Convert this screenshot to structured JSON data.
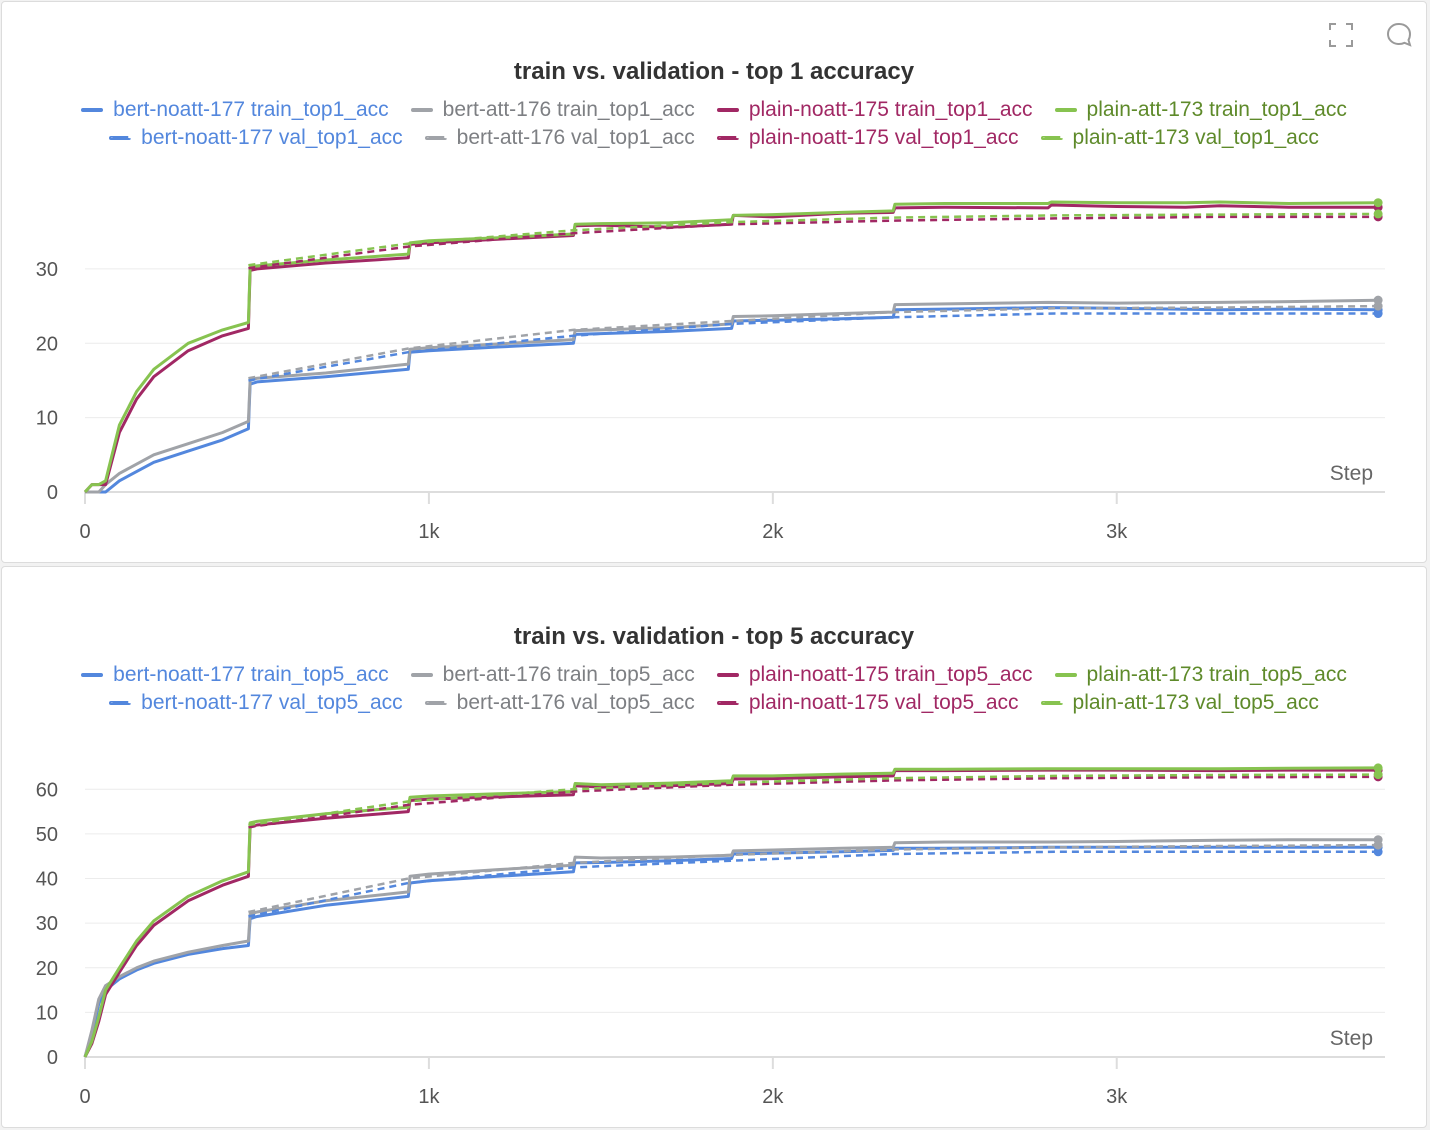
{
  "icons": [
    "fullscreen-icon",
    "comment-icon"
  ],
  "chart_data": [
    {
      "type": "line",
      "title": "train vs. validation - top 1 accuracy",
      "xlabel": "Step",
      "ylabel": "",
      "xlim": [
        0,
        3780
      ],
      "ylim": [
        0,
        39
      ],
      "xticks": [
        0,
        1000,
        2000,
        3000
      ],
      "xtick_labels": [
        "0",
        "1k",
        "2k",
        "3k"
      ],
      "yticks": [
        0,
        10,
        20,
        30
      ],
      "ytick_labels": [
        "0",
        "10",
        "20",
        "30"
      ],
      "grid": true,
      "legend_position": "top",
      "series": [
        {
          "name": "bert-noatt-177 train_top1_acc",
          "color": "#5387dd",
          "dash": false,
          "x": [
            0,
            40,
            60,
            100,
            200,
            300,
            400,
            475,
            480,
            500,
            700,
            940,
            945,
            1000,
            1200,
            1420,
            1425,
            1500,
            1700,
            1880,
            1885,
            2000,
            2200,
            2350,
            2355,
            2500,
            2800,
            3000,
            3300,
            3500,
            3760
          ],
          "y": [
            0,
            0,
            0,
            1.5,
            4,
            5.5,
            7,
            8.5,
            14.5,
            14.8,
            15.5,
            16.5,
            18.8,
            19,
            19.5,
            20,
            21.2,
            21.3,
            21.6,
            22,
            23,
            23.1,
            23.3,
            23.5,
            24.5,
            24.6,
            24.8,
            24.7,
            24.5,
            24.6,
            24.5
          ]
        },
        {
          "name": "bert-att-176 train_top1_acc",
          "color": "#a0a3a8",
          "dash": false,
          "x": [
            0,
            40,
            60,
            100,
            200,
            300,
            400,
            475,
            480,
            500,
            700,
            940,
            945,
            1000,
            1200,
            1420,
            1425,
            1500,
            1700,
            1880,
            1885,
            2000,
            2200,
            2350,
            2355,
            2500,
            2800,
            3000,
            3300,
            3500,
            3760
          ],
          "y": [
            0,
            0,
            1,
            2.5,
            5,
            6.5,
            8,
            9.5,
            15,
            15.3,
            16,
            17.2,
            19.2,
            19.4,
            19.9,
            20.5,
            21.7,
            21.8,
            22.1,
            22.6,
            23.6,
            23.7,
            24,
            24.2,
            25.2,
            25.3,
            25.5,
            25.4,
            25.5,
            25.6,
            25.8
          ]
        },
        {
          "name": "plain-noatt-175 train_top1_acc",
          "color": "#a12864",
          "dash": false,
          "x": [
            0,
            20,
            40,
            60,
            100,
            150,
            200,
            300,
            400,
            475,
            480,
            500,
            700,
            940,
            945,
            1000,
            1200,
            1420,
            1425,
            1500,
            1700,
            1880,
            1885,
            2000,
            2200,
            2350,
            2355,
            2500,
            2800,
            2810,
            3000,
            3200,
            3300,
            3500,
            3760
          ],
          "y": [
            0,
            1,
            1,
            1,
            8,
            12.5,
            15.5,
            19,
            21,
            22,
            29.8,
            30,
            30.8,
            31.5,
            33.3,
            33.5,
            34,
            34.5,
            35.8,
            35.9,
            35.6,
            36,
            37.2,
            37,
            37.5,
            37.6,
            38.2,
            38.3,
            38.2,
            38.6,
            38.4,
            38.3,
            38.5,
            38.3,
            38.3
          ]
        },
        {
          "name": "plain-att-173 train_top1_acc",
          "color": "#87c350",
          "dash": false,
          "x": [
            0,
            20,
            40,
            60,
            100,
            150,
            200,
            300,
            400,
            475,
            480,
            500,
            700,
            940,
            945,
            1000,
            1200,
            1420,
            1425,
            1500,
            1700,
            1880,
            1885,
            2000,
            2200,
            2350,
            2355,
            2500,
            2800,
            2810,
            3000,
            3200,
            3300,
            3500,
            3760
          ],
          "y": [
            0,
            1,
            1,
            1.5,
            9,
            13.5,
            16.5,
            20,
            21.8,
            22.8,
            30.2,
            30.4,
            31.2,
            32,
            33.5,
            33.8,
            34.2,
            34.7,
            36,
            36.1,
            36.2,
            36.6,
            37.2,
            37.3,
            37.6,
            37.8,
            38.7,
            38.8,
            38.8,
            39,
            38.9,
            38.9,
            39,
            38.8,
            38.9
          ]
        },
        {
          "name": "bert-noatt-177 val_top1_acc",
          "color": "#5387dd",
          "dash": true,
          "x": [
            475,
            940,
            1420,
            1880,
            2350,
            2820,
            3290,
            3760
          ],
          "y": [
            15,
            18.8,
            21,
            22.6,
            23.5,
            24,
            24,
            24
          ]
        },
        {
          "name": "bert-att-176 val_top1_acc",
          "color": "#a0a3a8",
          "dash": true,
          "x": [
            475,
            940,
            1420,
            1880,
            2350,
            2820,
            3290,
            3760
          ],
          "y": [
            15.3,
            19.3,
            21.8,
            23,
            24.2,
            24.7,
            24.8,
            25
          ]
        },
        {
          "name": "plain-noatt-175 val_top1_acc",
          "color": "#a12864",
          "dash": true,
          "x": [
            475,
            940,
            1420,
            1880,
            2350,
            2820,
            3290,
            3760
          ],
          "y": [
            30.1,
            33,
            34.8,
            36,
            36.5,
            36.8,
            37,
            37
          ]
        },
        {
          "name": "plain-att-173 val_top1_acc",
          "color": "#87c350",
          "dash": true,
          "x": [
            475,
            940,
            1420,
            1880,
            2350,
            2820,
            3290,
            3760
          ],
          "y": [
            30.5,
            33.4,
            35.2,
            36.3,
            36.9,
            37.2,
            37.3,
            37.4
          ]
        }
      ]
    },
    {
      "type": "line",
      "title": "train vs. validation - top 5 accuracy",
      "xlabel": "Step",
      "ylabel": "",
      "xlim": [
        0,
        3780
      ],
      "ylim": [
        0,
        65
      ],
      "xticks": [
        0,
        1000,
        2000,
        3000
      ],
      "xtick_labels": [
        "0",
        "1k",
        "2k",
        "3k"
      ],
      "yticks": [
        0,
        10,
        20,
        30,
        40,
        50,
        60
      ],
      "ytick_labels": [
        "0",
        "10",
        "20",
        "30",
        "40",
        "50",
        "60"
      ],
      "grid": true,
      "legend_position": "top",
      "series": [
        {
          "name": "bert-noatt-177 train_top5_acc",
          "color": "#5387dd",
          "dash": false,
          "x": [
            0,
            20,
            40,
            60,
            100,
            150,
            200,
            300,
            400,
            475,
            480,
            500,
            700,
            940,
            945,
            1000,
            1200,
            1420,
            1425,
            1500,
            1700,
            1880,
            1885,
            2000,
            2200,
            2350,
            2355,
            2500,
            2800,
            3000,
            3300,
            3500,
            3760
          ],
          "y": [
            0,
            5,
            12,
            15,
            17.5,
            19.5,
            21,
            23,
            24.3,
            25,
            31,
            31.5,
            34,
            36,
            39,
            39.5,
            40.5,
            41.5,
            43.5,
            43.6,
            44,
            44.5,
            45.5,
            45.7,
            46,
            46.3,
            46.8,
            46.8,
            47,
            47,
            47,
            47,
            47
          ]
        },
        {
          "name": "bert-att-176 train_top5_acc",
          "color": "#a0a3a8",
          "dash": false,
          "x": [
            0,
            20,
            40,
            60,
            100,
            150,
            200,
            300,
            400,
            475,
            480,
            500,
            700,
            940,
            945,
            1000,
            1200,
            1420,
            1425,
            1500,
            1700,
            1880,
            1885,
            2000,
            2200,
            2350,
            2355,
            2500,
            2800,
            3000,
            3300,
            3500,
            3760
          ],
          "y": [
            0,
            6,
            13,
            16,
            18,
            20,
            21.5,
            23.5,
            25,
            26,
            32,
            32.5,
            35,
            37,
            40.5,
            41,
            42,
            43,
            44.8,
            44.6,
            44.8,
            45.2,
            46.2,
            46.4,
            46.8,
            47,
            48,
            48.2,
            48.2,
            48.3,
            48.6,
            48.7,
            48.7
          ]
        },
        {
          "name": "plain-noatt-175 train_top5_acc",
          "color": "#a12864",
          "dash": false,
          "x": [
            0,
            20,
            40,
            60,
            100,
            150,
            200,
            300,
            400,
            475,
            480,
            500,
            700,
            940,
            945,
            1000,
            1200,
            1420,
            1425,
            1500,
            1700,
            1880,
            1885,
            2000,
            2200,
            2350,
            2355,
            2500,
            2800,
            3000,
            3300,
            3500,
            3760
          ],
          "y": [
            0,
            3,
            8,
            14,
            19,
            25,
            29.5,
            35,
            38.5,
            40.5,
            51.5,
            52,
            53.5,
            55,
            57.5,
            57.8,
            58.3,
            58.8,
            60.8,
            60.5,
            60.8,
            61.3,
            62.3,
            62.4,
            62.8,
            63,
            64.2,
            64.2,
            64.3,
            64.3,
            64.2,
            64.3,
            64.3
          ]
        },
        {
          "name": "plain-att-173 train_top5_acc",
          "color": "#87c350",
          "dash": false,
          "x": [
            0,
            20,
            40,
            60,
            100,
            150,
            200,
            300,
            400,
            475,
            480,
            500,
            700,
            940,
            945,
            1000,
            1200,
            1420,
            1425,
            1500,
            1700,
            1880,
            1885,
            2000,
            2200,
            2350,
            2355,
            2500,
            2800,
            3000,
            3300,
            3500,
            3760
          ],
          "y": [
            0,
            3.5,
            9,
            15,
            20,
            26,
            30.5,
            36,
            39.5,
            41.5,
            52.5,
            52.8,
            54.5,
            56,
            58.2,
            58.5,
            59,
            59.5,
            61.3,
            61,
            61.4,
            61.9,
            63,
            63,
            63.4,
            63.6,
            64.5,
            64.5,
            64.6,
            64.6,
            64.6,
            64.7,
            64.8
          ]
        },
        {
          "name": "bert-noatt-177 val_top5_acc",
          "color": "#5387dd",
          "dash": true,
          "x": [
            475,
            940,
            1420,
            1880,
            2350,
            2820,
            3290,
            3760
          ],
          "y": [
            31.5,
            39,
            42.5,
            44,
            45.5,
            46,
            46,
            46
          ]
        },
        {
          "name": "bert-att-176 val_top5_acc",
          "color": "#a0a3a8",
          "dash": true,
          "x": [
            475,
            940,
            1420,
            1880,
            2350,
            2820,
            3290,
            3760
          ],
          "y": [
            32.5,
            40,
            43.5,
            45.3,
            46.5,
            47,
            47.3,
            47.5
          ]
        },
        {
          "name": "plain-noatt-175 val_top5_acc",
          "color": "#a12864",
          "dash": true,
          "x": [
            475,
            940,
            1420,
            1880,
            2350,
            2820,
            3290,
            3760
          ],
          "y": [
            51.5,
            56.5,
            59.5,
            61,
            62,
            62.5,
            62.7,
            62.8
          ]
        },
        {
          "name": "plain-att-173 val_top5_acc",
          "color": "#87c350",
          "dash": true,
          "x": [
            475,
            940,
            1420,
            1880,
            2350,
            2820,
            3290,
            3760
          ],
          "y": [
            52,
            57.3,
            60,
            61.5,
            62.5,
            63,
            63.2,
            63.3
          ]
        }
      ]
    }
  ]
}
